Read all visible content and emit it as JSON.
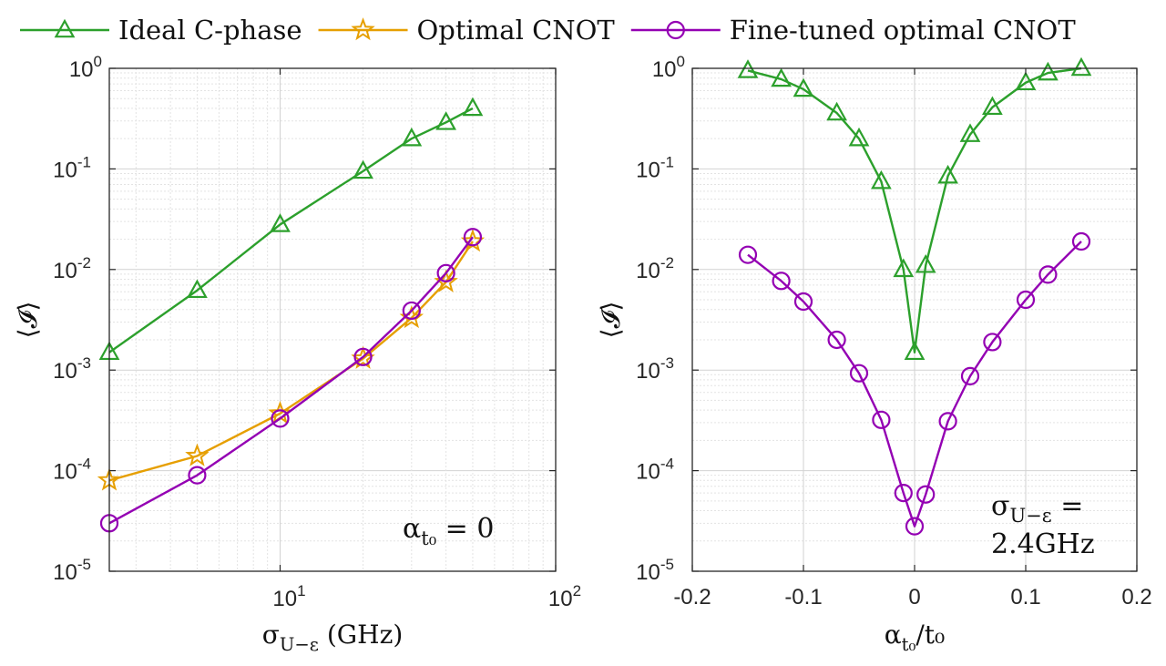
{
  "legend": {
    "items": [
      {
        "label": "Ideal C-phase",
        "color": "#2ca02c",
        "marker": "triangle-icon"
      },
      {
        "label": "Optimal CNOT",
        "color": "#e69f00",
        "marker": "star-icon"
      },
      {
        "label": "Fine-tuned optimal CNOT",
        "color": "#9400b3",
        "marker": "circle-icon"
      }
    ]
  },
  "chart_data": [
    {
      "type": "line",
      "xscale": "log",
      "yscale": "log",
      "xlim": [
        2.4,
        100
      ],
      "ylim": [
        1e-05,
        1
      ],
      "xticks": [
        10,
        100
      ],
      "yticks": [
        1e-05,
        0.0001,
        0.001,
        0.01,
        0.1,
        1
      ],
      "xlabel": "σ_{U−ε} (GHz)",
      "ylabel": "⟨𝓘⟩",
      "grid": true,
      "annotation": "α_{t₀} = 0",
      "series": [
        {
          "name": "Ideal C-phase",
          "color": "#2ca02c",
          "marker": "triangle",
          "x": [
            2.4,
            5,
            10,
            20,
            30,
            40,
            50
          ],
          "y": [
            0.0015,
            0.0062,
            0.028,
            0.095,
            0.2,
            0.29,
            0.4
          ]
        },
        {
          "name": "Optimal CNOT",
          "color": "#e69f00",
          "marker": "star",
          "x": [
            2.4,
            5,
            10,
            20,
            30,
            40,
            50
          ],
          "y": [
            8e-05,
            0.00014,
            0.00037,
            0.0013,
            0.0033,
            0.0075,
            0.019
          ]
        },
        {
          "name": "Fine-tuned optimal CNOT",
          "color": "#9400b3",
          "marker": "circle",
          "x": [
            2.4,
            5,
            10,
            20,
            30,
            40,
            50
          ],
          "y": [
            3e-05,
            9e-05,
            0.00033,
            0.00135,
            0.0039,
            0.0092,
            0.021
          ]
        }
      ]
    },
    {
      "type": "line",
      "xscale": "linear",
      "yscale": "log",
      "xlim": [
        -0.2,
        0.2
      ],
      "ylim": [
        1e-05,
        1
      ],
      "xticks": [
        -0.2,
        -0.1,
        0,
        0.1,
        0.2
      ],
      "yticks": [
        1e-05,
        0.0001,
        0.001,
        0.01,
        0.1,
        1
      ],
      "xlabel": "α_{t₀}/t₀",
      "ylabel": "⟨𝓘⟩",
      "grid": true,
      "annotation": [
        "σ_{U−ε} =",
        "2.4GHz"
      ],
      "series": [
        {
          "name": "Ideal C-phase",
          "color": "#2ca02c",
          "marker": "triangle",
          "x": [
            -0.15,
            -0.12,
            -0.1,
            -0.07,
            -0.05,
            -0.03,
            -0.01,
            0,
            0.01,
            0.03,
            0.05,
            0.07,
            0.1,
            0.12,
            0.15
          ],
          "y": [
            0.95,
            0.78,
            0.62,
            0.36,
            0.2,
            0.075,
            0.01,
            0.0015,
            0.011,
            0.085,
            0.22,
            0.41,
            0.72,
            0.9,
            1.0
          ]
        },
        {
          "name": "Fine-tuned optimal CNOT",
          "color": "#9400b3",
          "marker": "circle",
          "x": [
            -0.15,
            -0.12,
            -0.1,
            -0.07,
            -0.05,
            -0.03,
            -0.01,
            0,
            0.01,
            0.03,
            0.05,
            0.07,
            0.1,
            0.12,
            0.15
          ],
          "y": [
            0.014,
            0.0077,
            0.0048,
            0.002,
            0.00093,
            0.00032,
            6e-05,
            2.8e-05,
            5.8e-05,
            0.00031,
            0.00087,
            0.0019,
            0.005,
            0.0089,
            0.019
          ]
        }
      ]
    }
  ]
}
